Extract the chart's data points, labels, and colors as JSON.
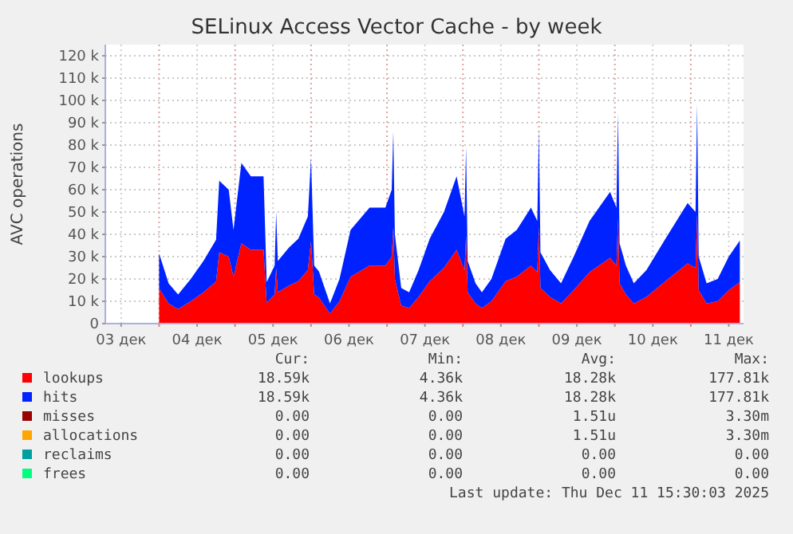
{
  "chart_data": {
    "type": "area",
    "title": "SELinux Access Vector Cache - by week",
    "ylabel": "AVC operations",
    "stacked": true,
    "grid": true,
    "legend": "bottom",
    "x": [
      "2025-12-04T00:00",
      "2025-12-04T03:00",
      "2025-12-04T06:00",
      "2025-12-04T10:00",
      "2025-12-04T14:00",
      "2025-12-04T18:00",
      "2025-12-04T19:00",
      "2025-12-04T22:00",
      "2025-12-04T23:30",
      "2025-12-05T02:00",
      "2025-12-05T05:00",
      "2025-12-05T09:00",
      "2025-12-05T10:00",
      "2025-12-05T12:30",
      "2025-12-05T13:00",
      "2025-12-05T13:30",
      "2025-12-05T17:00",
      "2025-12-05T20:00",
      "2025-12-05T23:00",
      "2025-12-06T00:00",
      "2025-12-06T01:00",
      "2025-12-06T02:30",
      "2025-12-06T06:00",
      "2025-12-06T09:00",
      "2025-12-06T12:30",
      "2025-12-06T18:30",
      "2025-12-06T23:30",
      "2025-12-07T01:30",
      "2025-12-07T02:00",
      "2025-12-07T02:30",
      "2025-12-07T04:30",
      "2025-12-07T07:00",
      "2025-12-07T10:00",
      "2025-12-07T13:30",
      "2025-12-07T18:00",
      "2025-12-07T22:00",
      "2025-12-08T00:30",
      "2025-12-08T01:00",
      "2025-12-08T01:30",
      "2025-12-08T04:00",
      "2025-12-08T06:00",
      "2025-12-08T09:00",
      "2025-12-08T13:30",
      "2025-12-08T17:00",
      "2025-12-08T21:30",
      "2025-12-08T23:30",
      "2025-12-09T00:00",
      "2025-12-09T00:30",
      "2025-12-09T03:30",
      "2025-12-09T07:00",
      "2025-12-09T11:00",
      "2025-12-09T16:00",
      "2025-12-09T22:30",
      "2025-12-10T00:30",
      "2025-12-10T01:00",
      "2025-12-10T01:30",
      "2025-12-10T03:30",
      "2025-12-10T06:00",
      "2025-12-10T10:00",
      "2025-12-10T16:00",
      "2025-12-10T23:00",
      "2025-12-11T01:30",
      "2025-12-11T02:00",
      "2025-12-11T02:30",
      "2025-12-11T05:00",
      "2025-12-11T08:30",
      "2025-12-11T12:00",
      "2025-12-11T15:30"
    ],
    "series": [
      {
        "name": "lookups",
        "color": "#ff0000",
        "values": [
          15700,
          9000,
          6500,
          10000,
          14000,
          18800,
          32000,
          30000,
          21000,
          36000,
          33000,
          33000,
          9300,
          13000,
          25000,
          14000,
          17000,
          19000,
          24000,
          37000,
          13000,
          11700,
          4500,
          10000,
          21000,
          26000,
          26000,
          30000,
          43000,
          20000,
          8000,
          7000,
          12000,
          19000,
          25000,
          33000,
          24000,
          39500,
          14000,
          9000,
          7000,
          10000,
          19000,
          21000,
          26000,
          23000,
          43500,
          16000,
          12000,
          9000,
          15000,
          23000,
          29500,
          26000,
          47000,
          18000,
          13000,
          9000,
          12000,
          19000,
          27000,
          25000,
          49000,
          15000,
          9000,
          10000,
          15000,
          18600
        ]
      },
      {
        "name": "hits",
        "color": "#0022ff",
        "values": [
          15700,
          9000,
          6500,
          10000,
          14000,
          18800,
          32000,
          30000,
          21000,
          36000,
          33000,
          33000,
          9300,
          13000,
          25000,
          14000,
          17000,
          19000,
          24000,
          37000,
          13000,
          11700,
          4500,
          10000,
          21000,
          26000,
          26000,
          30000,
          43000,
          20000,
          8000,
          7000,
          12000,
          19000,
          25000,
          33000,
          24000,
          39500,
          14000,
          9000,
          7000,
          10000,
          19000,
          21000,
          26000,
          23000,
          43500,
          16000,
          12000,
          9000,
          15000,
          23000,
          29500,
          26000,
          47000,
          18000,
          13000,
          9000,
          12000,
          19000,
          27000,
          25000,
          49000,
          15000,
          9000,
          10000,
          15000,
          18600
        ]
      },
      {
        "name": "misses",
        "color": "#990000",
        "values": [
          null,
          null,
          null,
          null,
          null,
          null,
          null,
          null,
          null,
          null,
          null,
          null,
          null,
          null,
          null,
          null,
          null,
          null,
          null,
          null,
          null,
          null,
          null,
          null,
          null,
          null,
          null,
          null,
          null,
          null,
          null,
          null,
          null,
          null,
          null,
          null,
          null,
          null,
          null,
          null,
          null,
          null,
          null,
          null,
          null,
          null,
          null,
          null,
          null,
          null,
          null,
          null,
          null,
          null,
          null,
          null,
          null,
          null,
          null,
          null,
          null,
          null,
          null,
          null,
          null,
          null,
          null,
          null
        ]
      },
      {
        "name": "allocations",
        "color": "#ffa500",
        "values": [
          null,
          null,
          null,
          null,
          null,
          null,
          null,
          null,
          null,
          null,
          null,
          null,
          null,
          null,
          null,
          null,
          null,
          null,
          null,
          null,
          null,
          null,
          null,
          null,
          null,
          null,
          null,
          null,
          null,
          null,
          null,
          null,
          null,
          null,
          null,
          null,
          null,
          null,
          null,
          null,
          null,
          null,
          null,
          null,
          null,
          null,
          null,
          null,
          null,
          null,
          null,
          null,
          null,
          null,
          null,
          null,
          null,
          null,
          null,
          null,
          null,
          null,
          null,
          null,
          null,
          null,
          null,
          null
        ]
      },
      {
        "name": "reclaims",
        "color": "#00a0a0",
        "values": [
          null,
          null,
          null,
          null,
          null,
          null,
          null,
          null,
          null,
          null,
          null,
          null,
          null,
          null,
          null,
          null,
          null,
          null,
          null,
          null,
          null,
          null,
          null,
          null,
          null,
          null,
          null,
          null,
          null,
          null,
          null,
          null,
          null,
          null,
          null,
          null,
          null,
          null,
          null,
          null,
          null,
          null,
          null,
          null,
          null,
          null,
          null,
          null,
          null,
          null,
          null,
          null,
          null,
          null,
          null,
          null,
          null,
          null,
          null,
          null,
          null,
          null,
          null,
          null,
          null,
          null,
          null,
          null
        ]
      },
      {
        "name": "frees",
        "color": "#00ff7f",
        "values": [
          null,
          null,
          null,
          null,
          null,
          null,
          null,
          null,
          null,
          null,
          null,
          null,
          null,
          null,
          null,
          null,
          null,
          null,
          null,
          null,
          null,
          null,
          null,
          null,
          null,
          null,
          null,
          null,
          null,
          null,
          null,
          null,
          null,
          null,
          null,
          null,
          null,
          null,
          null,
          null,
          null,
          null,
          null,
          null,
          null,
          null,
          null,
          null,
          null,
          null,
          null,
          null,
          null,
          null,
          null,
          null,
          null,
          null,
          null,
          null,
          null,
          null,
          null,
          null,
          null,
          null,
          null,
          null
        ]
      }
    ],
    "xlim": [
      "2025-12-03T07:00",
      "2025-12-11T16:40"
    ],
    "xticks": [
      {
        "value": "2025-12-03T12:00",
        "label": "03 дек"
      },
      {
        "value": "2025-12-04T00:00",
        "label": null
      },
      {
        "value": "2025-12-04T12:00",
        "label": "04 дек"
      },
      {
        "value": "2025-12-05T00:00",
        "label": null
      },
      {
        "value": "2025-12-05T12:00",
        "label": "05 дек"
      },
      {
        "value": "2025-12-06T00:00",
        "label": null
      },
      {
        "value": "2025-12-06T12:00",
        "label": "06 дек"
      },
      {
        "value": "2025-12-07T00:00",
        "label": null
      },
      {
        "value": "2025-12-07T12:00",
        "label": "07 дек"
      },
      {
        "value": "2025-12-08T00:00",
        "label": null
      },
      {
        "value": "2025-12-08T12:00",
        "label": "08 дек"
      },
      {
        "value": "2025-12-09T00:00",
        "label": null
      },
      {
        "value": "2025-12-09T12:00",
        "label": "09 дек"
      },
      {
        "value": "2025-12-10T00:00",
        "label": null
      },
      {
        "value": "2025-12-10T12:00",
        "label": "10 дек"
      },
      {
        "value": "2025-12-11T00:00",
        "label": null
      },
      {
        "value": "2025-12-11T12:00",
        "label": "11 дек"
      }
    ],
    "ylim": [
      0,
      125000
    ],
    "yticks": [
      0,
      {
        "value": 10000,
        "label": "10 k"
      },
      {
        "value": 20000,
        "label": "20 k"
      },
      {
        "value": 30000,
        "label": "30 k"
      },
      {
        "value": 40000,
        "label": "40 k"
      },
      {
        "value": 50000,
        "label": "50 k"
      },
      {
        "value": 60000,
        "label": "60 k"
      },
      {
        "value": 70000,
        "label": "70 k"
      },
      {
        "value": 80000,
        "label": "80 k"
      },
      {
        "value": 90000,
        "label": "90 k"
      },
      {
        "value": 100000,
        "label": "100 k"
      },
      {
        "value": 110000,
        "label": "110 k"
      },
      {
        "value": 120000,
        "label": "120 k"
      }
    ],
    "annotations": [
      "Cur:",
      "Min:",
      "Avg:",
      "Max:",
      "18.59k",
      "4.36k",
      "18.28k",
      "177.81k",
      "18.59k",
      "4.36k",
      "18.28k",
      "177.81k",
      "0.00",
      "0.00",
      "1.51u",
      "3.30m",
      "0.00",
      "0.00",
      "1.51u",
      "3.30m",
      "0.00",
      "0.00",
      "0.00",
      "0.00",
      "0.00",
      "0.00",
      "0.00",
      "0.00",
      "Last update: Thu Dec 11 15:30:03 2025"
    ]
  }
}
